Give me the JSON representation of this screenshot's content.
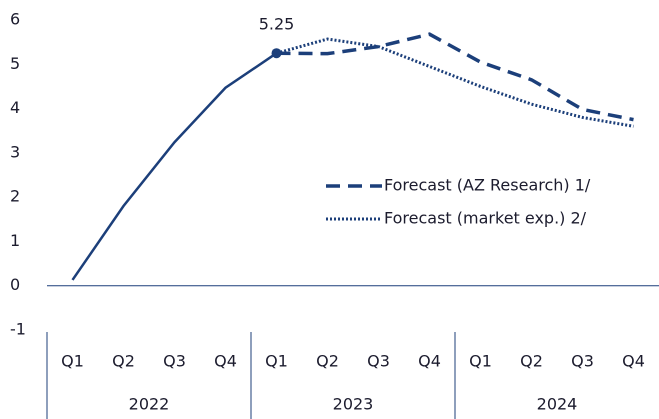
{
  "chart_data": {
    "type": "line",
    "categories": [
      "Q1",
      "Q2",
      "Q3",
      "Q4",
      "Q1",
      "Q2",
      "Q3",
      "Q4",
      "Q1",
      "Q2",
      "Q3",
      "Q4"
    ],
    "groups": [
      {
        "label": "2022",
        "span": 4
      },
      {
        "label": "2023",
        "span": 4
      },
      {
        "label": "2024",
        "span": 4
      }
    ],
    "series": [
      {
        "color": "#1c3f7a",
        "style": "solid",
        "marker": true,
        "values": [
          0.13,
          1.8,
          3.24,
          4.47,
          5.25,
          null,
          null,
          null,
          null,
          null,
          null,
          null
        ],
        "value_labels": [
          null,
          null,
          null,
          null,
          "5.25",
          null,
          null,
          null,
          null,
          null,
          null,
          null
        ]
      },
      {
        "name": "Forecast (AZ Research) 1/",
        "color": "#1c3f7a",
        "style": "dashed",
        "values": [
          null,
          null,
          null,
          null,
          5.25,
          5.24,
          5.4,
          5.68,
          5.05,
          4.65,
          3.98,
          3.75
        ]
      },
      {
        "name": "Forecast (market exp.) 2/",
        "color": "#1c3f7a",
        "style": "dotted",
        "values": [
          null,
          null,
          null,
          null,
          5.25,
          5.57,
          5.4,
          4.95,
          4.5,
          4.1,
          3.8,
          3.6
        ]
      }
    ],
    "ylim": [
      -1,
      6
    ],
    "yticks": [
      -1,
      0,
      1,
      2,
      3,
      4,
      5,
      6
    ],
    "grid": false
  }
}
